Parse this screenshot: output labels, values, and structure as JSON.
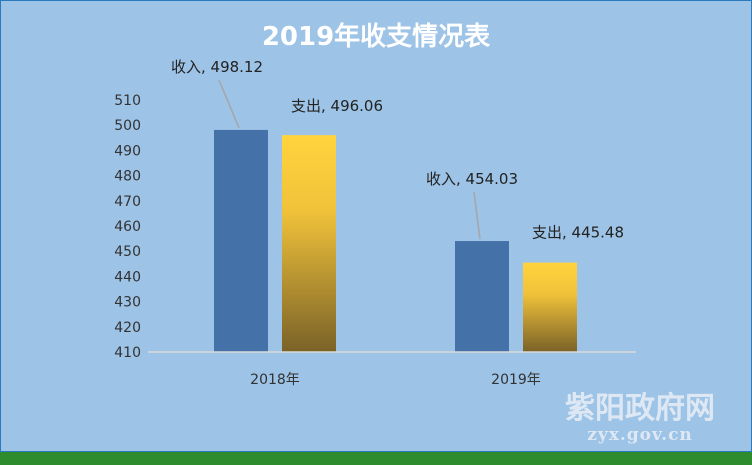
{
  "chart_data": {
    "type": "bar",
    "title": "2019年收支情况表",
    "categories": [
      "2018年",
      "2019年"
    ],
    "series": [
      {
        "name": "收入",
        "values": [
          498.12,
          454.03
        ],
        "color": "#4472a8"
      },
      {
        "name": "支出",
        "values": [
          496.06,
          445.48
        ],
        "color": "#f5c842"
      }
    ],
    "data_labels": [
      [
        "收入, 498.12",
        "收入, 454.03"
      ],
      [
        "支出, 496.06",
        "支出, 445.48"
      ]
    ],
    "ylim": [
      410,
      510
    ],
    "yticks": [
      410,
      420,
      430,
      440,
      450,
      460,
      470,
      480,
      490,
      500,
      510
    ],
    "grid": false,
    "legend": "none"
  },
  "colors": {
    "background": "#9dc3e6",
    "border": "#2a7abf",
    "bottom_stripe": "#2e8b2e",
    "income_bar": "#4472a8",
    "expense_bar_top": "#ffd43d",
    "expense_bar_bottom": "#7a6228"
  },
  "watermark": {
    "name": "紫阳政府网",
    "url": "zyx.gov.cn"
  }
}
